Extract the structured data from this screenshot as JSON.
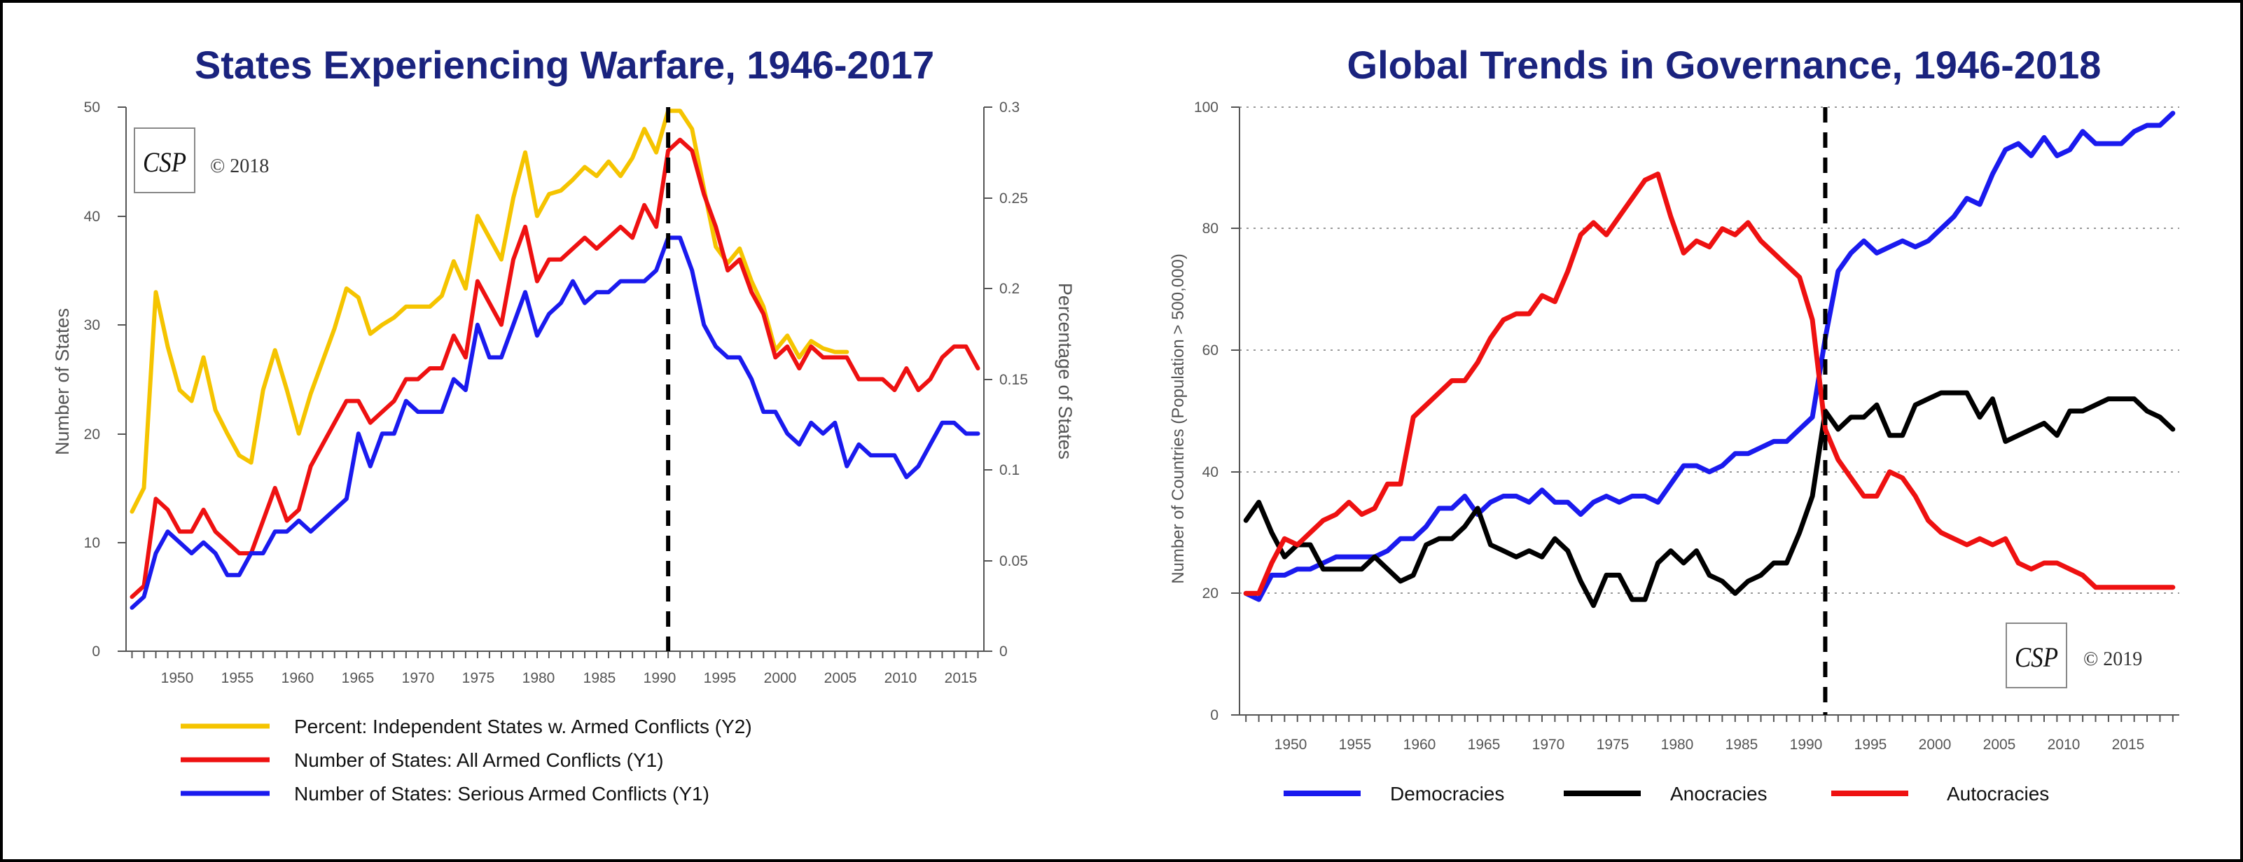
{
  "colors": {
    "title": "#1a237e",
    "yellow": "#f5c400",
    "red": "#ee1111",
    "blue": "#1a1aee",
    "black": "#000000",
    "axis": "#555555"
  },
  "chart_data": [
    {
      "type": "line",
      "title": "States Experiencing Warfare, 1946-2017",
      "ylabel": "Number of States",
      "y2label": "Percentage of States",
      "xlim": [
        1946,
        2017
      ],
      "ylim": [
        0,
        50
      ],
      "y2lim": [
        0,
        0.3
      ],
      "x_ticks": [
        "1950",
        "1955",
        "1960",
        "1965",
        "1970",
        "1975",
        "1980",
        "1985",
        "1990",
        "1995",
        "2000",
        "2005",
        "2010",
        "2015"
      ],
      "y_ticks": [
        "0",
        "10",
        "20",
        "30",
        "40",
        "50"
      ],
      "y2_ticks": [
        "0",
        "0.05",
        "0.1",
        "0.15",
        "0.2",
        "0.25",
        "0.3"
      ],
      "marker_year": 1991,
      "copyright": "© 2018",
      "logo_text": "CSP",
      "legend_position": "bottom",
      "series": [
        {
          "name": "Percent: Independent States w. Armed Conflicts (Y2)",
          "axis": "y2",
          "color": "#f5c400",
          "years": [
            1946,
            1947,
            1948,
            1949,
            1950,
            1951,
            1952,
            1953,
            1954,
            1955,
            1956,
            1957,
            1958,
            1959,
            1960,
            1961,
            1962,
            1963,
            1964,
            1965,
            1966,
            1967,
            1968,
            1969,
            1970,
            1971,
            1972,
            1973,
            1974,
            1975,
            1976,
            1977,
            1978,
            1979,
            1980,
            1981,
            1982,
            1983,
            1984,
            1985,
            1986,
            1987,
            1988,
            1989,
            1990,
            1991,
            1992,
            1993,
            1994,
            1995,
            1996,
            1997,
            1998,
            1999,
            2000,
            2001,
            2002,
            2003,
            2004,
            2005,
            2006
          ],
          "values": [
            0.077,
            0.09,
            0.198,
            0.168,
            0.144,
            0.138,
            0.162,
            0.133,
            0.12,
            0.108,
            0.104,
            0.144,
            0.166,
            0.144,
            0.12,
            0.142,
            0.16,
            0.178,
            0.2,
            0.195,
            0.175,
            0.18,
            0.184,
            0.19,
            0.19,
            0.19,
            0.196,
            0.215,
            0.2,
            0.24,
            0.228,
            0.216,
            0.25,
            0.275,
            0.24,
            0.252,
            0.254,
            0.26,
            0.267,
            0.262,
            0.27,
            0.262,
            0.272,
            0.288,
            0.275,
            0.298,
            0.298,
            0.288,
            0.255,
            0.223,
            0.214,
            0.222,
            0.204,
            0.19,
            0.166,
            0.174,
            0.162,
            0.171,
            0.167,
            0.165,
            0.165
          ]
        },
        {
          "name": "Number of States: All Armed Conflicts (Y1)",
          "axis": "y1",
          "color": "#ee1111",
          "years": [
            1946,
            1947,
            1948,
            1949,
            1950,
            1951,
            1952,
            1953,
            1954,
            1955,
            1956,
            1957,
            1958,
            1959,
            1960,
            1961,
            1962,
            1963,
            1964,
            1965,
            1966,
            1967,
            1968,
            1969,
            1970,
            1971,
            1972,
            1973,
            1974,
            1975,
            1976,
            1977,
            1978,
            1979,
            1980,
            1981,
            1982,
            1983,
            1984,
            1985,
            1986,
            1987,
            1988,
            1989,
            1990,
            1991,
            1992,
            1993,
            1994,
            1995,
            1996,
            1997,
            1998,
            1999,
            2000,
            2001,
            2002,
            2003,
            2004,
            2005,
            2006,
            2007,
            2008,
            2009,
            2010,
            2011,
            2012,
            2013,
            2014,
            2015,
            2016,
            2017
          ],
          "values": [
            5,
            6,
            14,
            13,
            11,
            11,
            13,
            11,
            10,
            9,
            9,
            12,
            15,
            12,
            13,
            17,
            19,
            21,
            23,
            23,
            21,
            22,
            23,
            25,
            25,
            26,
            26,
            29,
            27,
            34,
            32,
            30,
            36,
            39,
            34,
            36,
            36,
            37,
            38,
            37,
            38,
            39,
            38,
            41,
            39,
            46,
            47,
            46,
            42,
            39,
            35,
            36,
            33,
            31,
            27,
            28,
            26,
            28,
            27,
            27,
            27,
            25,
            25,
            25,
            24,
            26,
            24,
            25,
            27,
            28,
            28,
            26
          ]
        },
        {
          "name": "Number of States: Serious Armed Conflicts (Y1)",
          "axis": "y1",
          "color": "#1a1aee",
          "years": [
            1946,
            1947,
            1948,
            1949,
            1950,
            1951,
            1952,
            1953,
            1954,
            1955,
            1956,
            1957,
            1958,
            1959,
            1960,
            1961,
            1962,
            1963,
            1964,
            1965,
            1966,
            1967,
            1968,
            1969,
            1970,
            1971,
            1972,
            1973,
            1974,
            1975,
            1976,
            1977,
            1978,
            1979,
            1980,
            1981,
            1982,
            1983,
            1984,
            1985,
            1986,
            1987,
            1988,
            1989,
            1990,
            1991,
            1992,
            1993,
            1994,
            1995,
            1996,
            1997,
            1998,
            1999,
            2000,
            2001,
            2002,
            2003,
            2004,
            2005,
            2006,
            2007,
            2008,
            2009,
            2010,
            2011,
            2012,
            2013,
            2014,
            2015,
            2016,
            2017
          ],
          "values": [
            4,
            5,
            9,
            11,
            10,
            9,
            10,
            9,
            7,
            7,
            9,
            9,
            11,
            11,
            12,
            11,
            12,
            13,
            14,
            20,
            17,
            20,
            20,
            23,
            22,
            22,
            22,
            25,
            24,
            30,
            27,
            27,
            30,
            33,
            29,
            31,
            32,
            34,
            32,
            33,
            33,
            34,
            34,
            34,
            35,
            38,
            38,
            35,
            30,
            28,
            27,
            27,
            25,
            22,
            22,
            20,
            19,
            21,
            20,
            21,
            17,
            19,
            18,
            18,
            18,
            16,
            17,
            19,
            21,
            21,
            20,
            20
          ]
        }
      ]
    },
    {
      "type": "line",
      "title": "Global Trends in Governance, 1946-2018",
      "ylabel": "Number of Countries (Population > 500,000)",
      "xlim": [
        1946,
        2018
      ],
      "ylim": [
        0,
        100
      ],
      "x_ticks": [
        "1950",
        "1955",
        "1960",
        "1965",
        "1970",
        "1975",
        "1980",
        "1985",
        "1990",
        "1995",
        "2000",
        "2005",
        "2010",
        "2015"
      ],
      "y_ticks": [
        "0",
        "20",
        "40",
        "60",
        "80",
        "100"
      ],
      "marker_year": 1991,
      "copyright": "© 2019",
      "logo_text": "CSP",
      "legend_position": "bottom",
      "grid": true,
      "series": [
        {
          "name": "Democracies",
          "color": "#1a1aee",
          "years": [
            1946,
            1947,
            1948,
            1949,
            1950,
            1951,
            1952,
            1953,
            1954,
            1955,
            1956,
            1957,
            1958,
            1959,
            1960,
            1961,
            1962,
            1963,
            1964,
            1965,
            1966,
            1967,
            1968,
            1969,
            1970,
            1971,
            1972,
            1973,
            1974,
            1975,
            1976,
            1977,
            1978,
            1979,
            1980,
            1981,
            1982,
            1983,
            1984,
            1985,
            1986,
            1987,
            1988,
            1989,
            1990,
            1991,
            1992,
            1993,
            1994,
            1995,
            1996,
            1997,
            1998,
            1999,
            2000,
            2001,
            2002,
            2003,
            2004,
            2005,
            2006,
            2007,
            2008,
            2009,
            2010,
            2011,
            2012,
            2013,
            2014,
            2015,
            2016,
            2017,
            2018
          ],
          "values": [
            20,
            19,
            23,
            23,
            24,
            24,
            25,
            26,
            26,
            26,
            26,
            27,
            29,
            29,
            31,
            34,
            34,
            36,
            33,
            35,
            36,
            36,
            35,
            37,
            35,
            35,
            33,
            35,
            36,
            35,
            36,
            36,
            35,
            38,
            41,
            41,
            40,
            41,
            43,
            43,
            44,
            45,
            45,
            47,
            49,
            62,
            73,
            76,
            78,
            76,
            77,
            78,
            77,
            78,
            80,
            82,
            85,
            84,
            89,
            93,
            94,
            92,
            95,
            92,
            93,
            96,
            94,
            94,
            94,
            96,
            97,
            97,
            99
          ]
        },
        {
          "name": "Anocracies",
          "color": "#000000",
          "years": [
            1946,
            1947,
            1948,
            1949,
            1950,
            1951,
            1952,
            1953,
            1954,
            1955,
            1956,
            1957,
            1958,
            1959,
            1960,
            1961,
            1962,
            1963,
            1964,
            1965,
            1966,
            1967,
            1968,
            1969,
            1970,
            1971,
            1972,
            1973,
            1974,
            1975,
            1976,
            1977,
            1978,
            1979,
            1980,
            1981,
            1982,
            1983,
            1984,
            1985,
            1986,
            1987,
            1988,
            1989,
            1990,
            1991,
            1992,
            1993,
            1994,
            1995,
            1996,
            1997,
            1998,
            1999,
            2000,
            2001,
            2002,
            2003,
            2004,
            2005,
            2006,
            2007,
            2008,
            2009,
            2010,
            2011,
            2012,
            2013,
            2014,
            2015,
            2016,
            2017,
            2018
          ],
          "values": [
            32,
            35,
            30,
            26,
            28,
            28,
            24,
            24,
            24,
            24,
            26,
            24,
            22,
            23,
            28,
            29,
            29,
            31,
            34,
            28,
            27,
            26,
            27,
            26,
            29,
            27,
            22,
            18,
            23,
            23,
            19,
            19,
            25,
            27,
            25,
            27,
            23,
            22,
            20,
            22,
            23,
            25,
            25,
            30,
            36,
            50,
            47,
            49,
            49,
            51,
            46,
            46,
            51,
            52,
            53,
            53,
            53,
            49,
            52,
            45,
            46,
            47,
            48,
            46,
            50,
            50,
            51,
            52,
            52,
            52,
            50,
            49,
            47
          ]
        },
        {
          "name": "Autocracies",
          "color": "#ee1111",
          "years": [
            1946,
            1947,
            1948,
            1949,
            1950,
            1951,
            1952,
            1953,
            1954,
            1955,
            1956,
            1957,
            1958,
            1959,
            1960,
            1961,
            1962,
            1963,
            1964,
            1965,
            1966,
            1967,
            1968,
            1969,
            1970,
            1971,
            1972,
            1973,
            1974,
            1975,
            1976,
            1977,
            1978,
            1979,
            1980,
            1981,
            1982,
            1983,
            1984,
            1985,
            1986,
            1987,
            1988,
            1989,
            1990,
            1991,
            1992,
            1993,
            1994,
            1995,
            1996,
            1997,
            1998,
            1999,
            2000,
            2001,
            2002,
            2003,
            2004,
            2005,
            2006,
            2007,
            2008,
            2009,
            2010,
            2011,
            2012,
            2013,
            2014,
            2015,
            2016,
            2017,
            2018
          ],
          "values": [
            20,
            20,
            25,
            29,
            28,
            30,
            32,
            33,
            35,
            33,
            34,
            38,
            38,
            49,
            51,
            53,
            55,
            55,
            58,
            62,
            65,
            66,
            66,
            69,
            68,
            73,
            79,
            81,
            79,
            82,
            85,
            88,
            89,
            82,
            76,
            78,
            77,
            80,
            79,
            81,
            78,
            76,
            74,
            72,
            65,
            47,
            42,
            39,
            36,
            36,
            40,
            39,
            36,
            32,
            30,
            29,
            28,
            29,
            28,
            29,
            25,
            24,
            25,
            25,
            24,
            23,
            21,
            21,
            21,
            21,
            21,
            21,
            21
          ]
        }
      ]
    }
  ]
}
